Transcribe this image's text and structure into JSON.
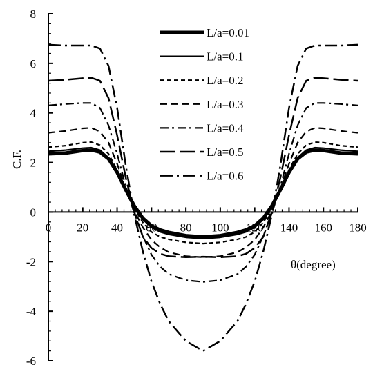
{
  "chart_data": {
    "type": "line",
    "title": "",
    "xlabel": "θ(degree)",
    "ylabel": "C.F.",
    "xlim": [
      0,
      180
    ],
    "ylim": [
      -6,
      8
    ],
    "xticks": [
      "0",
      "20",
      "40",
      "60",
      "80",
      "100",
      "120",
      "140",
      "160",
      "180"
    ],
    "yticks": [
      "-6",
      "-4",
      "-2",
      "0",
      "2",
      "4",
      "6",
      "8"
    ],
    "grid": false,
    "legend": "top-center",
    "x": [
      0,
      10,
      20,
      25,
      30,
      35,
      40,
      45,
      50,
      55,
      60,
      65,
      70,
      80,
      90,
      100,
      110,
      115,
      120,
      125,
      130,
      135,
      140,
      145,
      150,
      155,
      160,
      170,
      180
    ],
    "series": [
      {
        "name": "L/a=0.01",
        "values": [
          2.35,
          2.38,
          2.48,
          2.5,
          2.42,
          2.15,
          1.6,
          0.9,
          0.25,
          -0.25,
          -0.55,
          -0.72,
          -0.82,
          -0.95,
          -1.0,
          -0.95,
          -0.82,
          -0.72,
          -0.55,
          -0.25,
          0.25,
          0.9,
          1.6,
          2.15,
          2.42,
          2.5,
          2.48,
          2.38,
          2.35
        ]
      },
      {
        "name": "L/a=0.1",
        "values": [
          2.45,
          2.5,
          2.58,
          2.6,
          2.5,
          2.2,
          1.62,
          0.88,
          0.2,
          -0.3,
          -0.62,
          -0.8,
          -0.9,
          -1.02,
          -1.07,
          -1.02,
          -0.9,
          -0.8,
          -0.62,
          -0.3,
          0.2,
          0.88,
          1.62,
          2.2,
          2.5,
          2.6,
          2.58,
          2.5,
          2.45
        ]
      },
      {
        "name": "L/a=0.2",
        "values": [
          2.62,
          2.68,
          2.8,
          2.82,
          2.7,
          2.35,
          1.7,
          0.88,
          0.15,
          -0.42,
          -0.8,
          -1.0,
          -1.1,
          -1.22,
          -1.27,
          -1.22,
          -1.1,
          -1.0,
          -0.8,
          -0.42,
          0.15,
          0.88,
          1.7,
          2.35,
          2.7,
          2.82,
          2.8,
          2.68,
          2.62
        ]
      },
      {
        "name": "L/a=0.3",
        "values": [
          3.2,
          3.27,
          3.38,
          3.4,
          3.25,
          2.8,
          1.95,
          0.95,
          0.05,
          -0.62,
          -1.12,
          -1.42,
          -1.62,
          -1.78,
          -1.82,
          -1.78,
          -1.62,
          -1.42,
          -1.12,
          -0.62,
          0.05,
          0.95,
          1.95,
          2.8,
          3.25,
          3.4,
          3.38,
          3.27,
          3.2
        ]
      },
      {
        "name": "L/a=0.4",
        "values": [
          4.3,
          4.36,
          4.4,
          4.4,
          4.2,
          3.5,
          2.35,
          1.05,
          -0.05,
          -0.98,
          -1.72,
          -2.2,
          -2.5,
          -2.75,
          -2.82,
          -2.75,
          -2.5,
          -2.2,
          -1.72,
          -0.98,
          -0.05,
          1.05,
          2.35,
          3.5,
          4.2,
          4.4,
          4.4,
          4.36,
          4.3
        ]
      },
      {
        "name": "L/a=0.5",
        "values": [
          5.3,
          5.34,
          5.4,
          5.42,
          5.3,
          4.6,
          3.1,
          1.4,
          0.0,
          -1.0,
          -1.45,
          -1.68,
          -1.78,
          -1.82,
          -1.8,
          -1.82,
          -1.78,
          -1.68,
          -1.45,
          -1.0,
          0.0,
          1.4,
          3.1,
          4.6,
          5.3,
          5.42,
          5.4,
          5.34,
          5.3
        ]
      },
      {
        "name": "L/a=0.6",
        "values": [
          6.75,
          6.72,
          6.72,
          6.72,
          6.6,
          5.9,
          4.2,
          1.9,
          -0.1,
          -1.6,
          -2.8,
          -3.7,
          -4.4,
          -5.2,
          -5.6,
          -5.2,
          -4.4,
          -3.7,
          -2.8,
          -1.6,
          -0.1,
          1.9,
          4.2,
          5.9,
          6.6,
          6.72,
          6.72,
          6.72,
          6.75
        ]
      }
    ]
  },
  "styles": [
    {
      "color": "#000000",
      "dash": "",
      "width": 5
    },
    {
      "color": "#000000",
      "dash": "",
      "width": 2.2
    },
    {
      "color": "#000000",
      "dash": "6 4",
      "width": 2.2
    },
    {
      "color": "#000000",
      "dash": "10 6",
      "width": 2.2
    },
    {
      "color": "#000000",
      "dash": "12 5 3 5",
      "width": 2.2
    },
    {
      "color": "#000000",
      "dash": "22 7",
      "width": 2.5
    },
    {
      "color": "#000000",
      "dash": "18 6 3 6",
      "width": 2.5
    }
  ]
}
